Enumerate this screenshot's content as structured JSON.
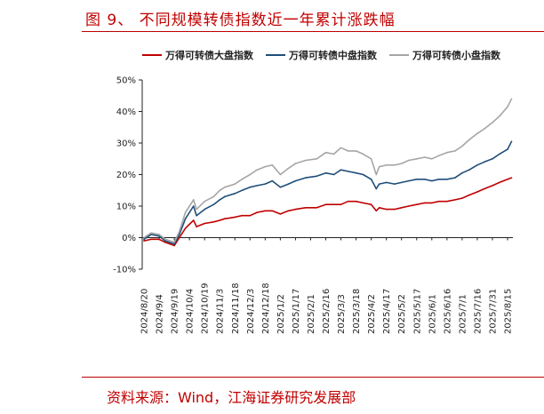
{
  "title": "图 9、 不同规模转债指数近一年累计涨跌幅",
  "source": "资料来源：Wind，江海证券研究发展部",
  "chart_data": {
    "type": "line",
    "title": "",
    "xlabel": "",
    "ylabel": "",
    "ylim": [
      -10,
      50
    ],
    "yticks": [
      -10,
      0,
      10,
      20,
      30,
      40,
      50
    ],
    "ytick_format": "percent",
    "x_tick_labels": [
      "2024/8/20",
      "2024/9/4",
      "2024/9/19",
      "2024/10/4",
      "2024/10/19",
      "2024/11/3",
      "2024/11/18",
      "2024/12/3",
      "2024/12/18",
      "2025/1/2",
      "2025/1/17",
      "2025/2/1",
      "2025/2/16",
      "2025/3/3",
      "2025/3/18",
      "2025/4/2",
      "2025/4/17",
      "2025/5/2",
      "2025/5/17",
      "2025/6/1",
      "2025/6/16",
      "2025/7/1",
      "2025/7/16",
      "2025/7/31",
      "2025/8/15"
    ],
    "legend_position": "top",
    "grid": false,
    "series": [
      {
        "name": "万得可转债大盘指数",
        "color": "#c00000",
        "x": [
          "2024/8/20",
          "2024/8/27",
          "2024/9/4",
          "2024/9/10",
          "2024/9/19",
          "2024/9/24",
          "2024/9/30",
          "2024/10/8",
          "2024/10/11",
          "2024/10/19",
          "2024/10/28",
          "2024/11/3",
          "2024/11/8",
          "2024/11/18",
          "2024/11/25",
          "2024/12/3",
          "2024/12/10",
          "2024/12/18",
          "2024/12/25",
          "2025/1/2",
          "2025/1/10",
          "2025/1/17",
          "2025/1/27",
          "2025/2/7",
          "2025/2/16",
          "2025/2/24",
          "2025/3/3",
          "2025/3/10",
          "2025/3/18",
          "2025/3/25",
          "2025/4/2",
          "2025/4/7",
          "2025/4/10",
          "2025/4/17",
          "2025/4/25",
          "2025/5/2",
          "2025/5/9",
          "2025/5/17",
          "2025/5/25",
          "2025/6/1",
          "2025/6/8",
          "2025/6/16",
          "2025/6/24",
          "2025/7/1",
          "2025/7/8",
          "2025/7/16",
          "2025/7/23",
          "2025/7/31",
          "2025/8/7",
          "2025/8/15",
          "2025/8/19"
        ],
        "values": [
          -1,
          -0.5,
          -0.5,
          -1.5,
          -2.5,
          0,
          3,
          5.5,
          3.5,
          4.5,
          5,
          5.5,
          6,
          6.5,
          7,
          7,
          8,
          8.5,
          8.5,
          7.5,
          8.5,
          9,
          9.5,
          9.5,
          10.5,
          10.5,
          10.5,
          11.5,
          11.5,
          11,
          10.5,
          8.5,
          9.5,
          9,
          9,
          9.5,
          10,
          10.5,
          11,
          11,
          11.5,
          11.5,
          12,
          12.5,
          13.5,
          14.5,
          15.5,
          16.5,
          17.5,
          18.5,
          19
        ]
      },
      {
        "name": "万得可转债中盘指数",
        "color": "#1f4e79",
        "x": [
          "2024/8/20",
          "2024/8/27",
          "2024/9/4",
          "2024/9/10",
          "2024/9/19",
          "2024/9/24",
          "2024/9/30",
          "2024/10/8",
          "2024/10/11",
          "2024/10/19",
          "2024/10/28",
          "2024/11/3",
          "2024/11/8",
          "2024/11/18",
          "2024/11/25",
          "2024/12/3",
          "2024/12/10",
          "2024/12/18",
          "2024/12/25",
          "2025/1/2",
          "2025/1/10",
          "2025/1/17",
          "2025/1/27",
          "2025/2/7",
          "2025/2/16",
          "2025/2/24",
          "2025/3/3",
          "2025/3/10",
          "2025/3/18",
          "2025/3/25",
          "2025/4/2",
          "2025/4/7",
          "2025/4/10",
          "2025/4/17",
          "2025/4/25",
          "2025/5/2",
          "2025/5/9",
          "2025/5/17",
          "2025/5/25",
          "2025/6/1",
          "2025/6/8",
          "2025/6/16",
          "2025/6/24",
          "2025/7/1",
          "2025/7/8",
          "2025/7/16",
          "2025/7/23",
          "2025/7/31",
          "2025/8/7",
          "2025/8/15",
          "2025/8/19"
        ],
        "values": [
          -0.5,
          1,
          0.5,
          -1,
          -2,
          1,
          6,
          10,
          7,
          9,
          10.5,
          12,
          13,
          14,
          15,
          16,
          16.5,
          17,
          18,
          16,
          17,
          18,
          19,
          19.5,
          20.5,
          20,
          21.5,
          21,
          20.5,
          20,
          18.5,
          15.5,
          17,
          17.5,
          17,
          17.5,
          18,
          18.5,
          18.5,
          18,
          18.5,
          18.5,
          19,
          20.5,
          21.5,
          23,
          24,
          25,
          26.5,
          28,
          30.5
        ]
      },
      {
        "name": "万得可转债小盘指数",
        "color": "#a6a6a6",
        "x": [
          "2024/8/20",
          "2024/8/27",
          "2024/9/4",
          "2024/9/10",
          "2024/9/19",
          "2024/9/24",
          "2024/9/30",
          "2024/10/8",
          "2024/10/11",
          "2024/10/19",
          "2024/10/28",
          "2024/11/3",
          "2024/11/8",
          "2024/11/18",
          "2024/11/25",
          "2024/12/3",
          "2024/12/10",
          "2024/12/18",
          "2024/12/25",
          "2025/1/2",
          "2025/1/10",
          "2025/1/17",
          "2025/1/27",
          "2025/2/7",
          "2025/2/16",
          "2025/2/24",
          "2025/3/3",
          "2025/3/10",
          "2025/3/18",
          "2025/3/25",
          "2025/4/2",
          "2025/4/7",
          "2025/4/10",
          "2025/4/17",
          "2025/4/25",
          "2025/5/2",
          "2025/5/9",
          "2025/5/17",
          "2025/5/25",
          "2025/6/1",
          "2025/6/8",
          "2025/6/16",
          "2025/6/24",
          "2025/7/1",
          "2025/7/8",
          "2025/7/16",
          "2025/7/23",
          "2025/7/31",
          "2025/8/7",
          "2025/8/15",
          "2025/8/19"
        ],
        "values": [
          0,
          1.5,
          1,
          -0.5,
          -1.5,
          2,
          8,
          12,
          9,
          11.5,
          13,
          15,
          16,
          17,
          18.5,
          20,
          21.5,
          22.5,
          23,
          20,
          22,
          23.5,
          24.5,
          25,
          27,
          26.5,
          28.5,
          27.5,
          27.5,
          26.5,
          25,
          20,
          22.5,
          23,
          23,
          23.5,
          24.5,
          25,
          25.5,
          25,
          26,
          27,
          27.5,
          29,
          31,
          33,
          34.5,
          36.5,
          38.5,
          41.5,
          44
        ]
      }
    ]
  }
}
